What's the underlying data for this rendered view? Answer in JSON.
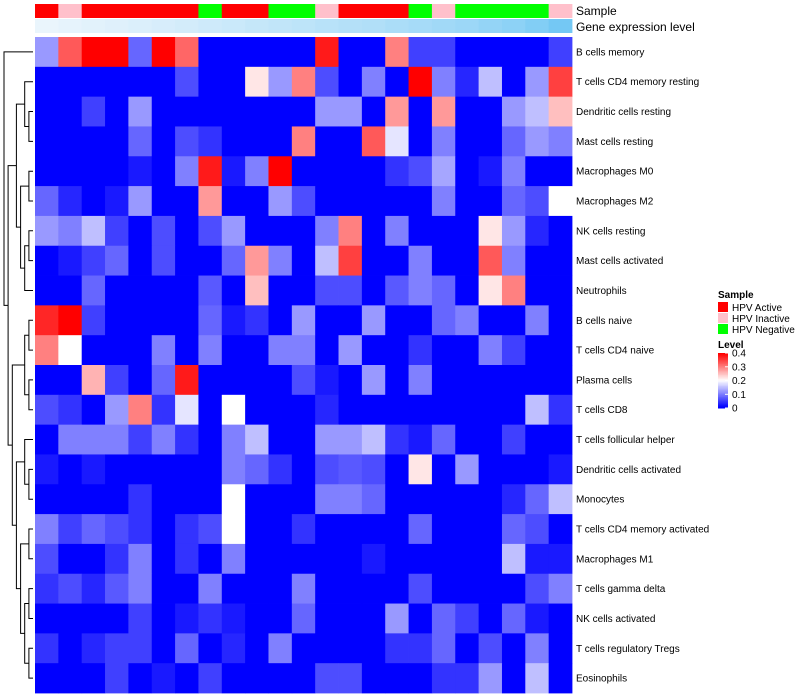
{
  "chart_data": {
    "type": "heatmap",
    "annotation_rows": [
      "Sample",
      "Gene expression level"
    ],
    "rows": [
      "B cells memory",
      "T cells CD4 memory resting",
      "Dendritic cells resting",
      "Mast cells resting",
      "Macrophages M0",
      "Macrophages M2",
      "NK cells resting",
      "Mast cells activated",
      "Neutrophils",
      "B cells naive",
      "T cells CD4 naive",
      "Plasma cells",
      "T cells CD8",
      "T cells follicular helper",
      "Dendritic cells activated",
      "Monocytes",
      "T cells CD4 memory activated",
      "Macrophages M1",
      "T cells gamma delta",
      "NK cells activated",
      "T cells regulatory  Tregs",
      "Eosinophils"
    ],
    "samples": [
      "HPV Active",
      "HPV Inactive",
      "HPV Active",
      "HPV Active",
      "HPV Active",
      "HPV Active",
      "HPV Active",
      "HPV Negative",
      "HPV Active",
      "HPV Active",
      "HPV Negative",
      "HPV Negative",
      "HPV Inactive",
      "HPV Active",
      "HPV Active",
      "HPV Active",
      "HPV Negative",
      "HPV Inactive",
      "HPV Negative",
      "HPV Negative",
      "HPV Negative",
      "HPV Negative",
      "HPV Inactive"
    ],
    "expression_level": [
      0.03,
      0.06,
      0.09,
      0.12,
      0.15,
      0.18,
      0.21,
      0.25,
      0.28,
      0.32,
      0.35,
      0.38,
      0.42,
      0.45,
      0.48,
      0.52,
      0.56,
      0.6,
      0.64,
      0.7,
      0.76,
      0.84,
      0.95
    ],
    "values": [
      [
        0.12,
        0.33,
        0.4,
        0.4,
        0.08,
        0.4,
        0.32,
        0,
        0,
        0,
        0,
        0,
        0.38,
        0,
        0,
        0.3,
        0.05,
        0.05,
        0,
        0,
        0,
        0,
        0.05
      ],
      [
        0,
        0,
        0,
        0,
        0,
        0,
        0.06,
        0,
        0,
        0.22,
        0.12,
        0.3,
        0.06,
        0,
        0.1,
        0,
        0.4,
        0.1,
        0.03,
        0.15,
        0,
        0.12,
        0.35
      ],
      [
        0,
        0,
        0.05,
        0,
        0.12,
        0,
        0,
        0,
        0,
        0,
        0,
        0,
        0.12,
        0.12,
        0,
        0.28,
        0,
        0.28,
        0,
        0,
        0.12,
        0.15,
        0.25
      ],
      [
        0,
        0,
        0,
        0,
        0.08,
        0,
        0.06,
        0.04,
        0,
        0,
        0,
        0.3,
        0,
        0,
        0.33,
        0.18,
        0,
        0.1,
        0,
        0,
        0.08,
        0.12,
        0.1
      ],
      [
        0,
        0,
        0,
        0,
        0.02,
        0,
        0.1,
        0.38,
        0.02,
        0.1,
        0.4,
        0,
        0,
        0,
        0,
        0.04,
        0.06,
        0.13,
        0,
        0.02,
        0.1,
        0,
        0
      ],
      [
        0.08,
        0.03,
        0,
        0.02,
        0.12,
        0,
        0,
        0.28,
        0,
        0,
        0.12,
        0.06,
        0,
        0,
        0,
        0,
        0,
        0.1,
        0,
        0,
        0.08,
        0.06,
        0.2
      ],
      [
        0.12,
        0.1,
        0.15,
        0.05,
        0,
        0.06,
        0,
        0.06,
        0.12,
        0,
        0,
        0,
        0.1,
        0.3,
        0,
        0.1,
        0,
        0,
        0,
        0.22,
        0.12,
        0.03,
        0
      ],
      [
        0,
        0.02,
        0.05,
        0.08,
        0,
        0.06,
        0,
        0,
        0.08,
        0.28,
        0.1,
        0,
        0.15,
        0.35,
        0,
        0,
        0.1,
        0,
        0,
        0.33,
        0.1,
        0,
        0
      ],
      [
        0,
        0,
        0.08,
        0,
        0,
        0,
        0,
        0.07,
        0,
        0.25,
        0,
        0,
        0.06,
        0.06,
        0,
        0.07,
        0.1,
        0.08,
        0,
        0.22,
        0.3,
        0,
        0
      ],
      [
        0.37,
        0.4,
        0.05,
        0,
        0,
        0,
        0,
        0.08,
        0.02,
        0.04,
        0,
        0.12,
        0,
        0,
        0.12,
        0,
        0,
        0.08,
        0.1,
        0,
        0,
        0.1,
        0
      ],
      [
        0.3,
        0.2,
        0,
        0,
        0,
        0.1,
        0,
        0.1,
        0,
        0,
        0.1,
        0.1,
        0,
        0.12,
        0,
        0,
        0.04,
        0,
        0,
        0.1,
        0.05,
        0,
        0
      ],
      [
        0,
        0,
        0.26,
        0.05,
        0,
        0.08,
        0.38,
        0,
        0,
        0,
        0,
        0.06,
        0.02,
        0,
        0.12,
        0,
        0.1,
        0,
        0,
        0,
        0,
        0,
        0
      ],
      [
        0.06,
        0.04,
        0,
        0.12,
        0.3,
        0.04,
        0.18,
        0,
        0.2,
        0,
        0,
        0,
        0.03,
        0,
        0,
        0,
        0,
        0,
        0,
        0,
        0,
        0.15,
        0.04
      ],
      [
        0,
        0.1,
        0.1,
        0.1,
        0.05,
        0.1,
        0.04,
        0,
        0.1,
        0.15,
        0,
        0,
        0.12,
        0.12,
        0.15,
        0.04,
        0.02,
        0.08,
        0,
        0,
        0.05,
        0,
        0
      ],
      [
        0.02,
        0,
        0.02,
        0,
        0,
        0,
        0,
        0,
        0.1,
        0.08,
        0.04,
        0,
        0.06,
        0.07,
        0.06,
        0,
        0.22,
        0,
        0.12,
        0,
        0,
        0,
        0.02
      ],
      [
        0,
        0,
        0,
        0,
        0.04,
        0,
        0,
        0,
        0.2,
        0,
        0,
        0,
        0.1,
        0.1,
        0.08,
        0,
        0,
        0,
        0,
        0,
        0.03,
        0.08,
        0.15
      ],
      [
        0.1,
        0.05,
        0.08,
        0.06,
        0.04,
        0,
        0.04,
        0.06,
        0.2,
        0,
        0,
        0.04,
        0,
        0,
        0,
        0,
        0.08,
        0,
        0,
        0,
        0.08,
        0.06,
        0
      ],
      [
        0.06,
        0,
        0,
        0.04,
        0.1,
        0,
        0.04,
        0,
        0.1,
        0,
        0,
        0,
        0,
        0,
        0.02,
        0,
        0,
        0,
        0,
        0,
        0.15,
        0.02,
        0.02
      ],
      [
        0.04,
        0.06,
        0.03,
        0.07,
        0.1,
        0,
        0,
        0.1,
        0,
        0,
        0,
        0.1,
        0,
        0,
        0,
        0,
        0.06,
        0,
        0,
        0,
        0,
        0.06,
        0.1
      ],
      [
        0,
        0,
        0,
        0,
        0.05,
        0,
        0.02,
        0.04,
        0.02,
        0,
        0,
        0.08,
        0,
        0,
        0,
        0.12,
        0,
        0.08,
        0.05,
        0,
        0.08,
        0.02,
        0
      ],
      [
        0.04,
        0,
        0.03,
        0.05,
        0.05,
        0,
        0.08,
        0,
        0.03,
        0,
        0.1,
        0,
        0,
        0,
        0,
        0.04,
        0.04,
        0.08,
        0,
        0.06,
        0,
        0.1,
        0
      ],
      [
        0,
        0,
        0,
        0.05,
        0,
        0.02,
        0,
        0.05,
        0,
        0,
        0,
        0,
        0.06,
        0.06,
        0,
        0,
        0,
        0.04,
        0.04,
        0.12,
        0,
        0.15,
        0
      ]
    ],
    "color_scale": {
      "min": 0,
      "mid": 0.2,
      "max": 0.4,
      "low": "#0000ff",
      "midcolor": "#ffffff",
      "high": "#ff0000"
    },
    "legend_position": "right"
  },
  "legend": {
    "sample_title": "Sample",
    "sample_items": [
      {
        "label": "HPV Active",
        "color": "#ff0000"
      },
      {
        "label": "HPV Inactive",
        "color": "#ffc0cb"
      },
      {
        "label": "HPV Negative",
        "color": "#00ff00"
      }
    ],
    "level_title": "Level",
    "level_ticks": [
      {
        "label": "0.4",
        "value": 0.4
      },
      {
        "label": "0.3",
        "value": 0.3
      },
      {
        "label": "0.2",
        "value": 0.2
      },
      {
        "label": "0.1",
        "value": 0.1
      },
      {
        "label": "0",
        "value": 0
      }
    ]
  },
  "colors": {
    "expression_low": "#eef6fc",
    "expression_high": "#6ec6f4"
  }
}
